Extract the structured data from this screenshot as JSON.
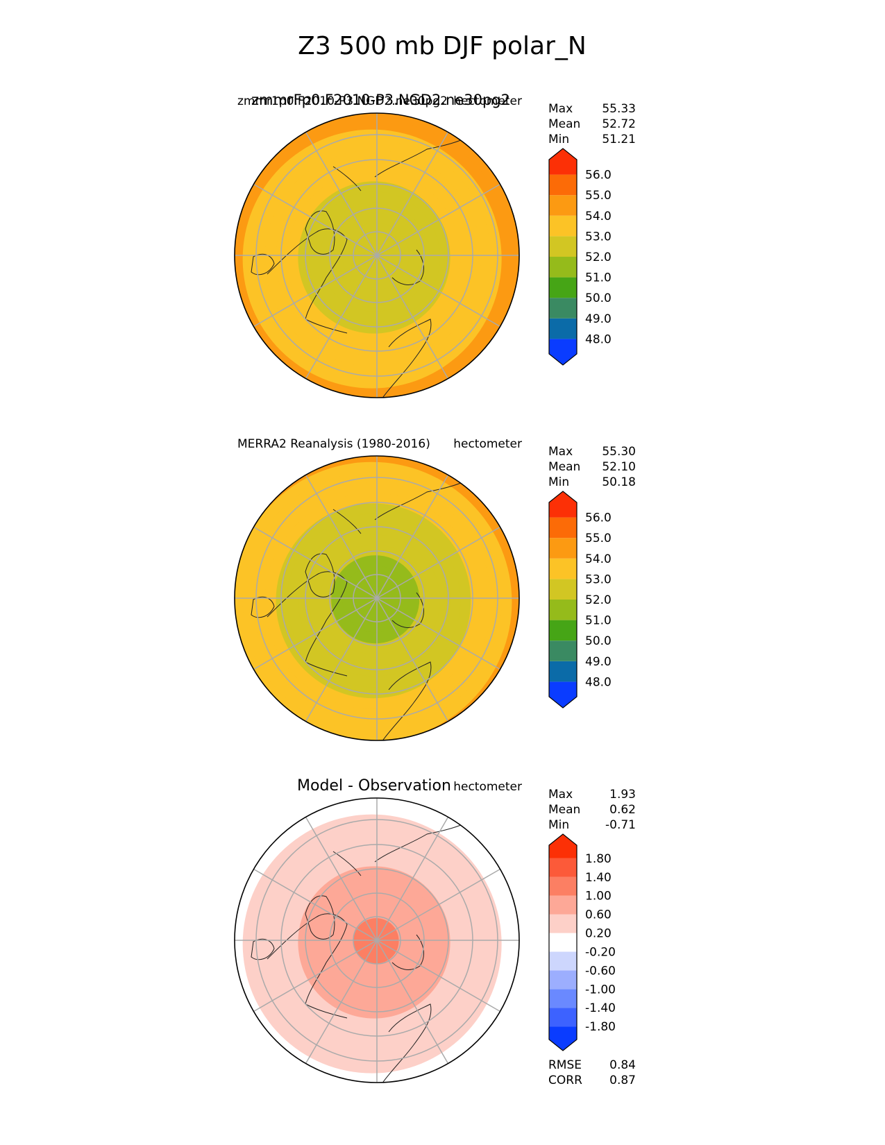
{
  "figure_title": "Z3 500 mb DJF polar_N",
  "chart_data": [
    {
      "type": "heatmap",
      "projection": "north-polar-stereographic",
      "title_left": "zmmr1p0.F2010-P3.NGD2.ne30pg2",
      "title_left_overlay": "zmmrFp0.F2010-P3.NGD2.ne30pg2",
      "units": "hectometer",
      "stats": {
        "max_label": "Max",
        "max": "55.33",
        "mean_label": "Mean",
        "mean": "52.72",
        "min_label": "Min",
        "min": "51.21"
      },
      "colorbar": {
        "levels": [
          "48.0",
          "49.0",
          "50.0",
          "51.0",
          "52.0",
          "53.0",
          "54.0",
          "55.0",
          "56.0"
        ],
        "colors": [
          "#0a3cff",
          "#0b6ba8",
          "#3a8a62",
          "#46a516",
          "#95bb1b",
          "#d2c623",
          "#fcc326",
          "#fc9a12",
          "#fc6b07",
          "#fc3006"
        ]
      },
      "field": {
        "pole": 52.5,
        "ring_mid": 52.8,
        "ring_outer": 54.3
      }
    },
    {
      "type": "heatmap",
      "projection": "north-polar-stereographic",
      "title_left": "MERRA2 Reanalysis (1980-2016)",
      "units": "hectometer",
      "stats": {
        "max_label": "Max",
        "max": "55.30",
        "mean_label": "Mean",
        "mean": "52.10",
        "min_label": "Min",
        "min": "50.18"
      },
      "colorbar": {
        "levels": [
          "48.0",
          "49.0",
          "50.0",
          "51.0",
          "52.0",
          "53.0",
          "54.0",
          "55.0",
          "56.0"
        ],
        "colors": [
          "#0a3cff",
          "#0b6ba8",
          "#3a8a62",
          "#46a516",
          "#95bb1b",
          "#d2c623",
          "#fcc326",
          "#fc9a12",
          "#fc6b07",
          "#fc3006"
        ]
      },
      "field": {
        "pole": 51.3,
        "ring_mid": 52.3,
        "ring_outer": 54.2
      }
    },
    {
      "type": "heatmap",
      "projection": "north-polar-stereographic",
      "title_left": "Model - Observation",
      "units": "hectometer",
      "stats": {
        "max_label": "Max",
        "max": "1.93",
        "mean_label": "Mean",
        "mean": "0.62",
        "min_label": "Min",
        "min": "-0.71"
      },
      "colorbar": {
        "levels": [
          "-1.80",
          "-1.40",
          "-1.00",
          "-0.60",
          "-0.20",
          "0.20",
          "0.60",
          "1.00",
          "1.40",
          "1.80"
        ],
        "colors": [
          "#0a3cff",
          "#3d62ff",
          "#6a89ff",
          "#9caefe",
          "#cdd6fd",
          "#ffffff",
          "#fdd0c8",
          "#fda897",
          "#fc7f63",
          "#fc5a39",
          "#fc3006"
        ]
      },
      "metrics": {
        "rmse_label": "RMSE",
        "rmse": "0.84",
        "corr_label": "CORR",
        "corr": "0.87"
      },
      "field": {
        "pole": 1.2,
        "ring_mid": 0.6,
        "ring_outer": 0.1
      }
    }
  ]
}
